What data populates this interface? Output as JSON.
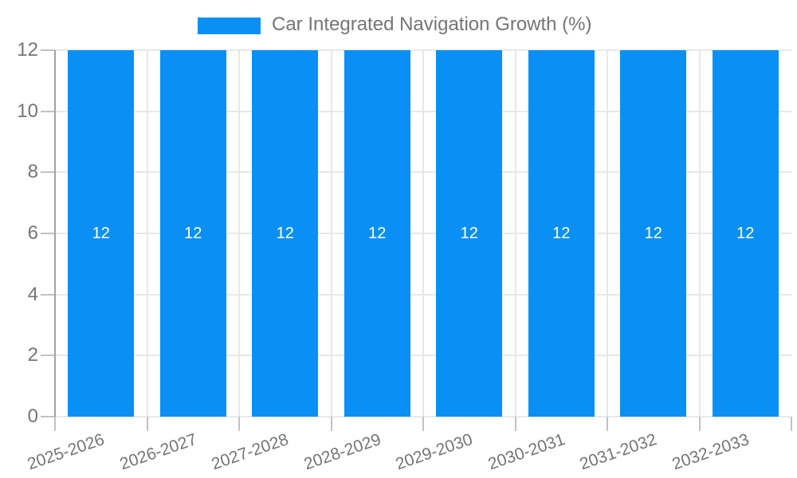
{
  "chart_data": {
    "type": "bar",
    "title": "Car Integrated Navigation Growth (%)",
    "categories": [
      "2025-2026",
      "2026-2027",
      "2027-2028",
      "2028-2029",
      "2029-2030",
      "2030-2031",
      "2031-2032",
      "2032-2033"
    ],
    "series": [
      {
        "name": "Car Integrated Navigation Growth (%)",
        "values": [
          12,
          12,
          12,
          12,
          12,
          12,
          12,
          12
        ]
      }
    ],
    "bar_value_labels": [
      "12",
      "12",
      "12",
      "12",
      "12",
      "12",
      "12",
      "12"
    ],
    "xlabel": "",
    "ylabel": "",
    "ylim": [
      0,
      12
    ],
    "yticks": [
      0,
      2,
      4,
      6,
      8,
      10,
      12
    ],
    "grid": true,
    "legend_position": "top-center",
    "colors": {
      "bar": "#0a90f5",
      "bar_value_label": "#ffffff",
      "axis_text": "#757575",
      "gridline": "#e8e8e8",
      "axis_line": "#a3a3a3",
      "tick": "#c2c2c2",
      "background": "#ffffff"
    }
  }
}
